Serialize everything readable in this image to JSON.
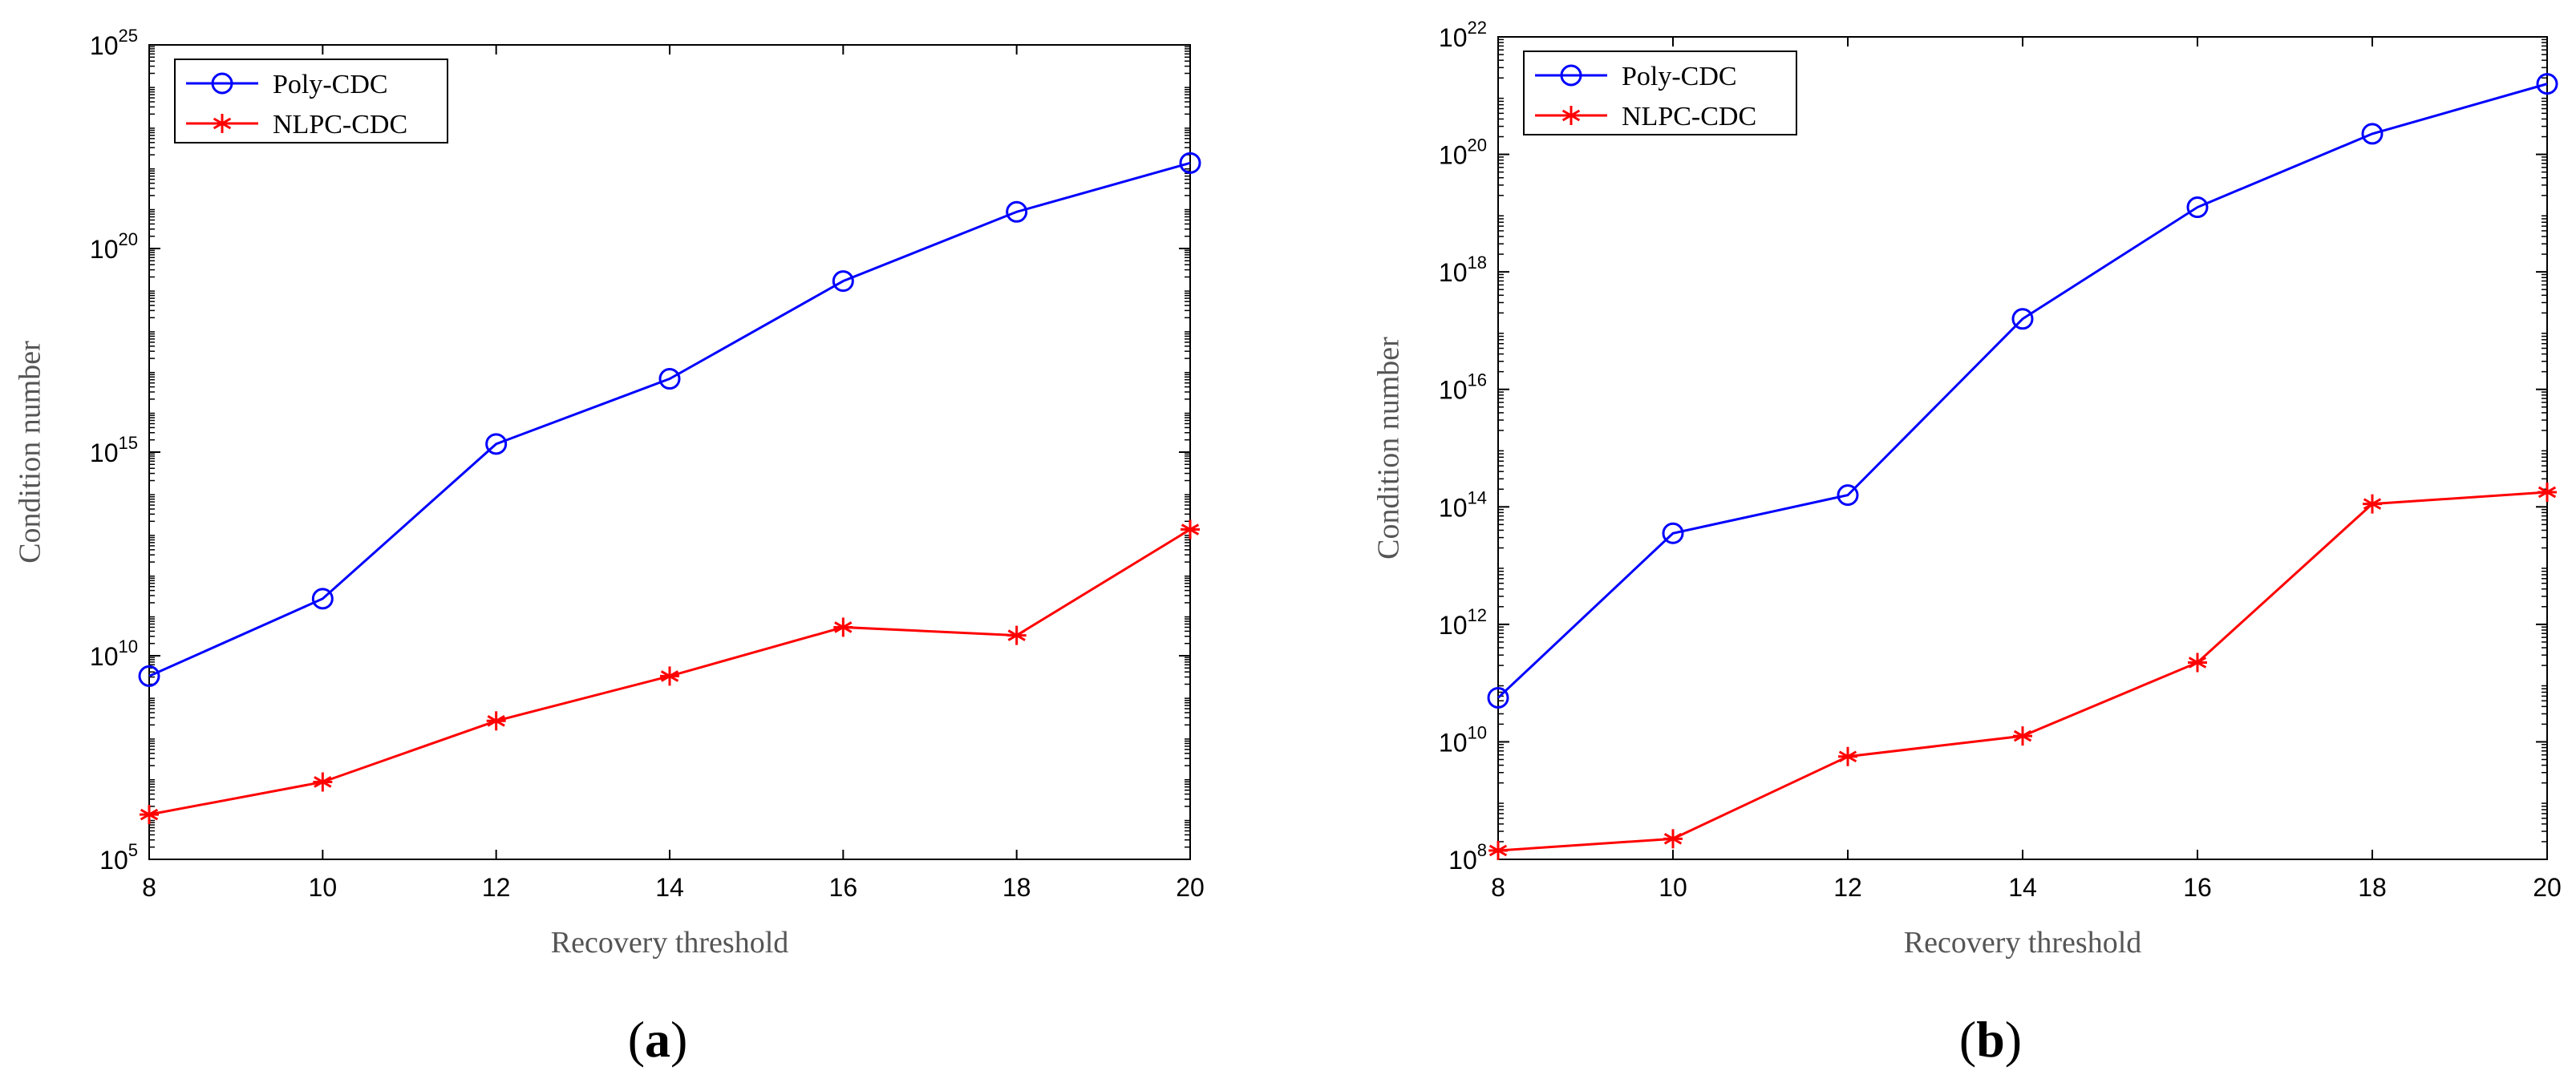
{
  "chart_data": [
    {
      "type": "line",
      "panel_label": "a",
      "xlabel": "Recovery threshold",
      "ylabel": "Condition number",
      "yscale": "log",
      "xlim": [
        8,
        20
      ],
      "ylim_exponents": [
        5,
        25
      ],
      "x_ticks": [
        8,
        10,
        12,
        14,
        16,
        18,
        20
      ],
      "y_tick_exponents": [
        5,
        10,
        15,
        20,
        25
      ],
      "legend_position": "top-left",
      "x": [
        8,
        10,
        12,
        14,
        16,
        18,
        20
      ],
      "series": [
        {
          "name": "Poly-CDC",
          "color": "#0000ff",
          "marker": "circle",
          "log10_values": [
            9.5,
            11.4,
            15.2,
            16.8,
            19.2,
            20.9,
            22.1
          ]
        },
        {
          "name": "NLPC-CDC",
          "color": "#ff0000",
          "marker": "asterisk",
          "log10_values": [
            6.1,
            6.9,
            8.4,
            9.5,
            10.7,
            10.5,
            13.1
          ]
        }
      ]
    },
    {
      "type": "line",
      "panel_label": "b",
      "xlabel": "Recovery threshold",
      "ylabel": "Condition number",
      "yscale": "log",
      "xlim": [
        8,
        20
      ],
      "ylim_exponents": [
        8,
        22
      ],
      "x_ticks": [
        8,
        10,
        12,
        14,
        16,
        18,
        20
      ],
      "y_tick_exponents": [
        8,
        10,
        12,
        14,
        16,
        18,
        20,
        22
      ],
      "legend_position": "top-left",
      "x": [
        8,
        10,
        12,
        14,
        16,
        18,
        20
      ],
      "series": [
        {
          "name": "Poly-CDC",
          "color": "#0000ff",
          "marker": "circle",
          "log10_values": [
            10.75,
            13.55,
            14.2,
            17.2,
            19.1,
            20.35,
            21.2
          ]
        },
        {
          "name": "NLPC-CDC",
          "color": "#ff0000",
          "marker": "asterisk",
          "log10_values": [
            8.15,
            8.35,
            9.75,
            10.1,
            11.35,
            14.05,
            14.25
          ]
        }
      ]
    }
  ]
}
